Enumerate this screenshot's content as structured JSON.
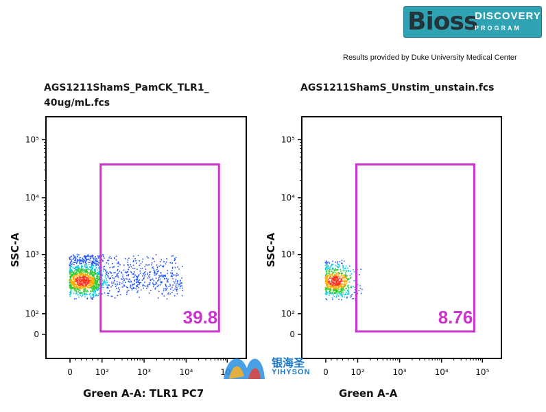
{
  "logo": {
    "main": "Bioss",
    "line1": "DISCOVERY",
    "line2": "PROGRAM"
  },
  "credit": "Results provided by Duke University Medical Center",
  "watermark": {
    "cn": "银海圣",
    "en": "YIHYSON"
  },
  "colors": {
    "gate": "#cc33cc",
    "gate_label": "#cc33cc",
    "brand": "#2fa3b3"
  },
  "chart_data": [
    {
      "type": "scatter",
      "title_lines": [
        "AGS1211ShamS_PamCK_TLR1_",
        "40ug/mL.fcs"
      ],
      "xlabel": "Green A-A: TLR1 PC7",
      "ylabel": "SSC-A",
      "x_scale": "biexponential",
      "y_scale": "biexponential",
      "x_ticks": [
        "0",
        "10²",
        "10³",
        "10⁴",
        "10⁵"
      ],
      "y_ticks": [
        "0",
        "10²",
        "10³",
        "10⁴",
        "10⁵"
      ],
      "population": {
        "x_range": [
          "0",
          "10⁴"
        ],
        "y_range": [
          "10²",
          "10³"
        ],
        "density_peak_x": "≈0–10²"
      },
      "gate": {
        "x_min": "10²",
        "x_max": "10⁵",
        "y_min": "0",
        "y_max": "10⁵",
        "percent": "39.8"
      }
    },
    {
      "type": "scatter",
      "title_lines": [
        "AGS1211ShamS_Unstim_unstain.fcs"
      ],
      "xlabel": "Green A-A",
      "ylabel": "SSC-A",
      "x_scale": "biexponential",
      "y_scale": "biexponential",
      "x_ticks": [
        "0",
        "10²",
        "10³",
        "10⁴",
        "10⁵"
      ],
      "y_ticks": [
        "0",
        "10²",
        "10³",
        "10⁴",
        "10⁵"
      ],
      "population": {
        "x_range": [
          "0",
          "10²"
        ],
        "y_range": [
          "10²",
          "10³"
        ],
        "density_peak_x": "≈0"
      },
      "gate": {
        "x_min": "10²",
        "x_max": "10⁵",
        "y_min": "0",
        "y_max": "10⁵",
        "percent": "8.76"
      }
    }
  ]
}
